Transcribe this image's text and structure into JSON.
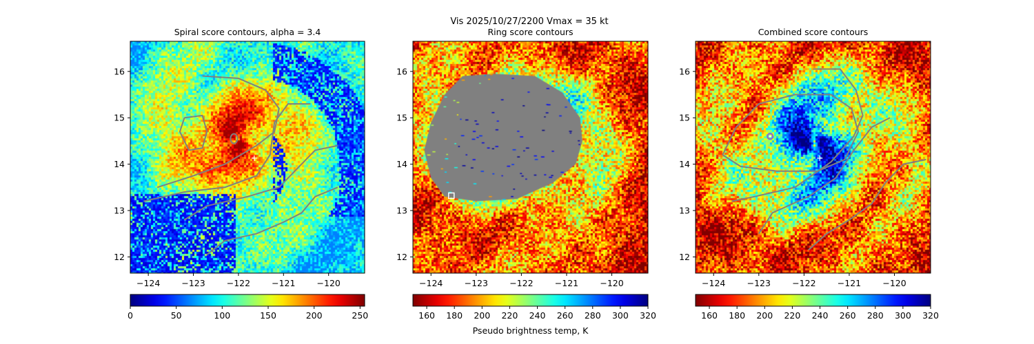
{
  "figure_title": "Vis  2025/10/27/2200    Vmax = 35 kt",
  "chart_data": [
    {
      "type": "heatmap",
      "title": "Spiral score contours, alpha =  3.4",
      "x_ticks": [
        -124,
        -123,
        -122,
        -121,
        -120
      ],
      "x_tick_labels": [
        "−124",
        "−123",
        "−122",
        "−121",
        "−120"
      ],
      "y_ticks": [
        12,
        13,
        14,
        15,
        16
      ],
      "y_tick_labels": [
        "12",
        "13",
        "14",
        "15",
        "16"
      ],
      "xlim": [
        -124.4,
        -119.2
      ],
      "ylim": [
        11.65,
        16.65
      ],
      "colormap": "jet",
      "colorbar": {
        "range": [
          0,
          255
        ],
        "ticks": [
          0,
          50,
          100,
          150,
          200,
          250
        ],
        "tick_labels": [
          "0",
          "50",
          "100",
          "150",
          "200",
          "250"
        ],
        "reversed": false,
        "label": ""
      },
      "center_marker": {
        "lon": -121.65,
        "lat": 14.13,
        "symbol": "+"
      },
      "eye": {
        "lon": -122.1,
        "lat": 14.55
      },
      "mask": null,
      "contours": [
        [
          [
            -122.8,
            15.9
          ],
          [
            -122.0,
            15.85
          ],
          [
            -121.4,
            15.6
          ],
          [
            -121.1,
            15.2
          ],
          [
            -121.2,
            14.7
          ],
          [
            -121.6,
            14.4
          ],
          [
            -122.3,
            14.0
          ],
          [
            -123.0,
            13.75
          ],
          [
            -123.8,
            13.5
          ]
        ],
        [
          [
            -123.2,
            15.0
          ],
          [
            -123.3,
            14.7
          ],
          [
            -123.1,
            14.3
          ],
          [
            -122.8,
            14.35
          ],
          [
            -122.7,
            14.7
          ],
          [
            -122.8,
            15.05
          ],
          [
            -123.2,
            15.0
          ]
        ],
        [
          [
            -120.4,
            15.3
          ],
          [
            -120.9,
            15.3
          ],
          [
            -121.2,
            14.9
          ],
          [
            -121.3,
            14.2
          ],
          [
            -121.6,
            13.75
          ],
          [
            -122.3,
            13.5
          ],
          [
            -123.2,
            13.4
          ],
          [
            -124.1,
            13.2
          ]
        ],
        [
          [
            -119.8,
            14.4
          ],
          [
            -120.3,
            14.3
          ],
          [
            -120.7,
            13.9
          ],
          [
            -121.1,
            13.5
          ],
          [
            -121.8,
            13.3
          ],
          [
            -122.7,
            13.1
          ],
          [
            -123.2,
            12.8
          ]
        ],
        [
          [
            -119.8,
            13.5
          ],
          [
            -120.3,
            13.3
          ],
          [
            -120.6,
            12.95
          ],
          [
            -121.0,
            12.75
          ],
          [
            -121.6,
            12.5
          ],
          [
            -122.3,
            12.35
          ],
          [
            -122.7,
            12.05
          ]
        ]
      ]
    },
    {
      "type": "heatmap",
      "title": "Ring score contours",
      "x_ticks": [
        -124,
        -123,
        -122,
        -121,
        -120
      ],
      "x_tick_labels": [
        "−124",
        "−123",
        "−122",
        "−121",
        "−120"
      ],
      "y_ticks": [
        12,
        13,
        14,
        15,
        16
      ],
      "y_tick_labels": [
        "12",
        "13",
        "14",
        "15",
        "16"
      ],
      "xlim": [
        -124.4,
        -119.2
      ],
      "ylim": [
        11.65,
        16.65
      ],
      "colormap": "jet",
      "colorbar": {
        "range": [
          150,
          320
        ],
        "ticks": [
          160,
          180,
          200,
          220,
          240,
          260,
          280,
          300,
          320
        ],
        "tick_labels": [
          "160",
          "180",
          "200",
          "220",
          "240",
          "260",
          "280",
          "300",
          "320"
        ],
        "reversed": true,
        "label": "Pseudo brightness temp, K"
      },
      "center_marker": null,
      "eye": {
        "lon": -122.1,
        "lat": 14.55
      },
      "mask": {
        "color": "#808080",
        "outline": [
          [
            -123.3,
            15.9
          ],
          [
            -122.6,
            15.95
          ],
          [
            -121.7,
            15.9
          ],
          [
            -121.1,
            15.55
          ],
          [
            -120.7,
            15.0
          ],
          [
            -120.65,
            14.5
          ],
          [
            -120.8,
            14.0
          ],
          [
            -121.3,
            13.6
          ],
          [
            -122.1,
            13.25
          ],
          [
            -123.0,
            13.2
          ],
          [
            -123.7,
            13.3
          ],
          [
            -124.0,
            13.7
          ],
          [
            -124.15,
            14.3
          ],
          [
            -124.0,
            14.9
          ],
          [
            -123.7,
            15.5
          ]
        ],
        "marker": {
          "lon": -123.55,
          "lat": 13.32,
          "symbol": "square"
        }
      },
      "contours": []
    },
    {
      "type": "heatmap",
      "title": "Combined score contours",
      "x_ticks": [
        -124,
        -123,
        -122,
        -121,
        -120
      ],
      "x_tick_labels": [
        "−124",
        "−123",
        "−122",
        "−121",
        "−120"
      ],
      "y_ticks": [
        12,
        13,
        14,
        15,
        16
      ],
      "y_tick_labels": [
        "12",
        "13",
        "14",
        "15",
        "16"
      ],
      "xlim": [
        -124.4,
        -119.2
      ],
      "ylim": [
        11.65,
        16.65
      ],
      "colormap": "jet",
      "colorbar": {
        "range": [
          150,
          320
        ],
        "ticks": [
          160,
          180,
          200,
          220,
          240,
          260,
          280,
          300,
          320
        ],
        "tick_labels": [
          "160",
          "180",
          "200",
          "220",
          "240",
          "260",
          "280",
          "300",
          "320"
        ],
        "reversed": true,
        "label": ""
      },
      "center_marker": {
        "lon": -121.65,
        "lat": 14.13,
        "symbol": "+"
      },
      "eye": {
        "lon": -121.8,
        "lat": 14.45
      },
      "mask": null,
      "best_center": {
        "lon": -122.75,
        "lat": 14.6,
        "symbol": "circle"
      },
      "contours": [
        [
          [
            -123.8,
            14.2
          ],
          [
            -123.5,
            14.8
          ],
          [
            -123.0,
            15.3
          ],
          [
            -122.2,
            15.5
          ],
          [
            -121.4,
            15.5
          ],
          [
            -120.95,
            15.2
          ],
          [
            -120.8,
            14.7
          ],
          [
            -121.1,
            14.1
          ],
          [
            -121.7,
            13.85
          ],
          [
            -122.6,
            13.85
          ],
          [
            -123.4,
            13.95
          ],
          [
            -123.8,
            14.2
          ]
        ],
        [
          [
            -121.8,
            16.05
          ],
          [
            -121.2,
            16.05
          ],
          [
            -120.85,
            15.6
          ],
          [
            -120.7,
            15.05
          ],
          [
            -120.9,
            14.6
          ],
          [
            -121.4,
            14.05
          ],
          [
            -122.2,
            13.5
          ],
          [
            -123.1,
            13.3
          ],
          [
            -123.6,
            13.2
          ]
        ],
        [
          [
            -120.1,
            15.0
          ],
          [
            -120.5,
            14.8
          ],
          [
            -120.9,
            14.3
          ],
          [
            -121.3,
            13.7
          ],
          [
            -121.9,
            13.3
          ],
          [
            -122.7,
            12.95
          ],
          [
            -123.0,
            12.5
          ]
        ],
        [
          [
            -119.3,
            14.1
          ],
          [
            -119.8,
            14.0
          ],
          [
            -120.2,
            13.6
          ],
          [
            -120.5,
            13.15
          ],
          [
            -121.0,
            12.8
          ],
          [
            -121.5,
            12.5
          ],
          [
            -121.9,
            12.15
          ]
        ]
      ]
    }
  ]
}
